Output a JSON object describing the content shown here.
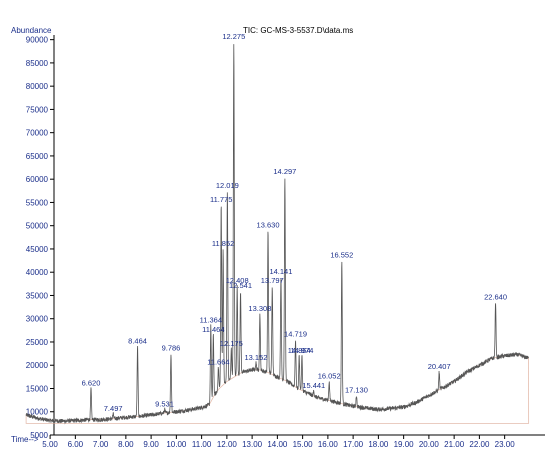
{
  "chart_data": {
    "type": "line",
    "title": "TIC: GC-MS-3-5537.D\\data.ms",
    "ylabel": "Abundance",
    "xlabel": "Time-->",
    "xlim": [
      4.0,
      24.0
    ],
    "ylim": [
      5000,
      91000
    ],
    "x_ticks": [
      "5.00",
      "6.00",
      "7.00",
      "8.00",
      "9.00",
      "10.00",
      "11.00",
      "12.00",
      "13.00",
      "14.00",
      "15.00",
      "16.00",
      "17.00",
      "18.00",
      "19.00",
      "20.00",
      "21.00",
      "22.00",
      "23.00"
    ],
    "y_ticks": [
      "5000",
      "10000",
      "15000",
      "20000",
      "25000",
      "30000",
      "35000",
      "40000",
      "45000",
      "50000",
      "55000",
      "60000",
      "65000",
      "70000",
      "75000",
      "80000",
      "85000",
      "90000"
    ],
    "series": [
      {
        "baseline": [
          [
            4.05,
            9300
          ],
          [
            4.5,
            8600
          ],
          [
            5.0,
            8100
          ],
          [
            5.5,
            8000
          ],
          [
            6.0,
            8100
          ],
          [
            6.5,
            8300
          ],
          [
            7.0,
            8300
          ],
          [
            7.5,
            8500
          ],
          [
            8.0,
            8800
          ],
          [
            8.5,
            9000
          ],
          [
            9.0,
            9300
          ],
          [
            9.5,
            9700
          ],
          [
            10.0,
            10000
          ],
          [
            10.5,
            10400
          ],
          [
            11.0,
            10900
          ],
          [
            11.3,
            11500
          ],
          [
            11.5,
            13500
          ],
          [
            11.7,
            15000
          ],
          [
            12.0,
            16500
          ],
          [
            12.3,
            17500
          ],
          [
            12.6,
            18500
          ],
          [
            13.0,
            19000
          ],
          [
            13.3,
            19000
          ],
          [
            13.6,
            18500
          ],
          [
            14.0,
            17500
          ],
          [
            14.4,
            16500
          ],
          [
            14.8,
            15000
          ],
          [
            15.2,
            14000
          ],
          [
            15.6,
            13000
          ],
          [
            16.0,
            12500
          ],
          [
            16.5,
            11800
          ],
          [
            17.0,
            11200
          ],
          [
            17.5,
            10800
          ],
          [
            18.0,
            10500
          ],
          [
            18.5,
            10700
          ],
          [
            19.0,
            11000
          ],
          [
            19.5,
            12000
          ],
          [
            20.0,
            13500
          ],
          [
            20.5,
            15000
          ],
          [
            21.0,
            16500
          ],
          [
            21.5,
            18500
          ],
          [
            22.0,
            20000
          ],
          [
            22.5,
            21500
          ],
          [
            23.0,
            22000
          ],
          [
            23.5,
            22300
          ],
          [
            23.95,
            21500
          ]
        ]
      }
    ],
    "peaks": [
      {
        "label": "6.620",
        "rt": 6.62,
        "abundance": 15000
      },
      {
        "label": "7.497",
        "rt": 7.497,
        "abundance": 9500
      },
      {
        "label": "8.464",
        "rt": 8.464,
        "abundance": 24000
      },
      {
        "label": "9.531",
        "rt": 9.531,
        "abundance": 10500
      },
      {
        "label": "9.786",
        "rt": 9.786,
        "abundance": 22500
      },
      {
        "label": "11.364",
        "rt": 11.364,
        "abundance": 28500
      },
      {
        "label": "11.464",
        "rt": 11.464,
        "abundance": 26500
      },
      {
        "label": "11.664",
        "rt": 11.664,
        "abundance": 19500
      },
      {
        "label": "11.775",
        "rt": 11.775,
        "abundance": 54500
      },
      {
        "label": "11.852",
        "rt": 11.852,
        "abundance": 45000
      },
      {
        "label": "12.019",
        "rt": 12.019,
        "abundance": 57500
      },
      {
        "label": "12.175",
        "rt": 12.175,
        "abundance": 23500
      },
      {
        "label": "12.275",
        "rt": 12.275,
        "abundance": 89500
      },
      {
        "label": "12.408",
        "rt": 12.408,
        "abundance": 37000
      },
      {
        "label": "12.541",
        "rt": 12.541,
        "abundance": 36000
      },
      {
        "label": "13.152",
        "rt": 13.152,
        "abundance": 20500
      },
      {
        "label": "13.308",
        "rt": 13.308,
        "abundance": 31000
      },
      {
        "label": "13.630",
        "rt": 13.63,
        "abundance": 49000
      },
      {
        "label": "13.797",
        "rt": 13.797,
        "abundance": 37000
      },
      {
        "label": "14.141",
        "rt": 14.141,
        "abundance": 39000
      },
      {
        "label": "14.297",
        "rt": 14.297,
        "abundance": 60500
      },
      {
        "label": "14.719",
        "rt": 14.719,
        "abundance": 25500
      },
      {
        "label": "14.864",
        "rt": 14.864,
        "abundance": 22000
      },
      {
        "label": "14.974",
        "rt": 14.974,
        "abundance": 22000
      },
      {
        "label": "15.441",
        "rt": 15.441,
        "abundance": 14500
      },
      {
        "label": "16.052",
        "rt": 16.052,
        "abundance": 16500
      },
      {
        "label": "16.552",
        "rt": 16.552,
        "abundance": 42500
      },
      {
        "label": "17.130",
        "rt": 17.13,
        "abundance": 13500
      },
      {
        "label": "20.407",
        "rt": 20.407,
        "abundance": 18500
      },
      {
        "label": "22.640",
        "rt": 22.64,
        "abundance": 33500
      }
    ],
    "line_color": "#555555",
    "fill_color": "#d9a08a",
    "label_color": "#1a2e8a",
    "grid": false
  }
}
